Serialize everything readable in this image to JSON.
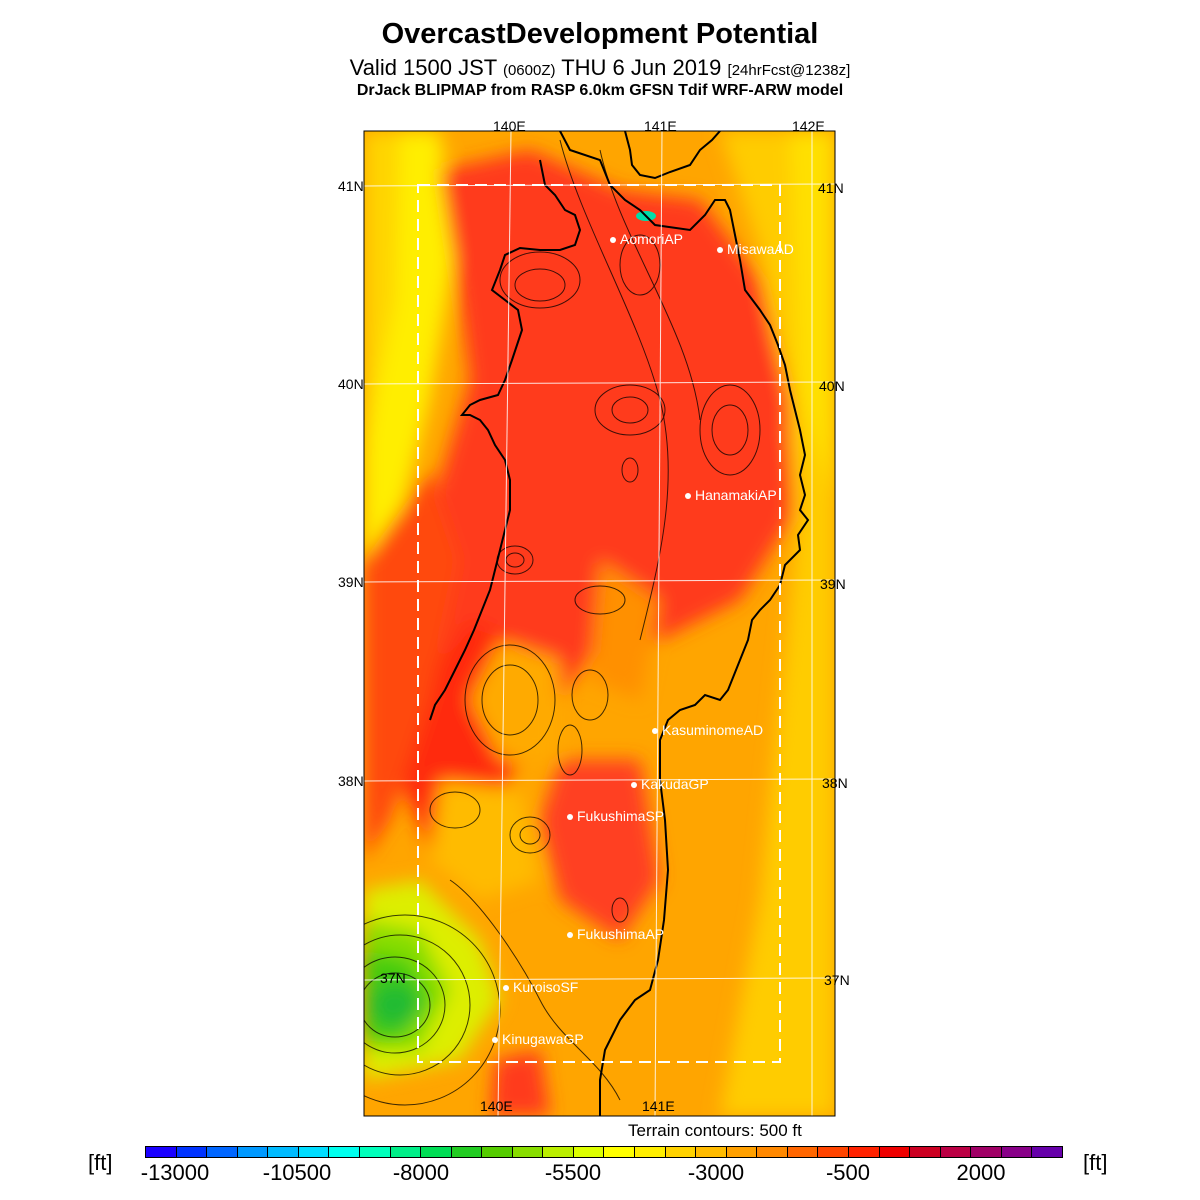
{
  "header": {
    "title": "OvercastDevelopment Potential",
    "valid_prefix": "Valid 1500 JST",
    "valid_utc": "(0600Z)",
    "valid_date": "THU 6 Jun 2019",
    "forecast": "[24hrFcst@1238z]",
    "model": "DrJack BLIPMAP from RASP 6.0km GFSN Tdif WRF-ARW model"
  },
  "map": {
    "lon_labels_top": [
      "140E",
      "141E",
      "142E"
    ],
    "lon_labels_bottom": [
      "140E",
      "141E"
    ],
    "lat_labels_left": [
      "41N",
      "40N",
      "39N",
      "38N",
      "37N"
    ],
    "lat_labels_right": [
      "41N",
      "40N",
      "39N",
      "38N",
      "37N"
    ],
    "stations": [
      {
        "name": "AomoriAP"
      },
      {
        "name": "MisawaAD"
      },
      {
        "name": "HanamakiAP"
      },
      {
        "name": "KasuminomeAD"
      },
      {
        "name": "KakudaGP"
      },
      {
        "name": "FukushimaSP"
      },
      {
        "name": "FukushimaAP"
      },
      {
        "name": "KuroisoSF"
      },
      {
        "name": "KinugawaGP"
      }
    ],
    "terrain_note": "Terrain contours: 500 ft"
  },
  "colorbar": {
    "unit": "[ft]",
    "tick_labels": [
      "-13000",
      "-10500",
      "-8000",
      "-5500",
      "-3000",
      "-500",
      "2000"
    ],
    "colors": [
      "#1a00ff",
      "#0033ff",
      "#0066ff",
      "#0099ff",
      "#00bbff",
      "#00ddff",
      "#00ffee",
      "#00ffbb",
      "#00ee88",
      "#00dd55",
      "#22cc22",
      "#55cc00",
      "#88dd00",
      "#bbee00",
      "#ddff00",
      "#ffff00",
      "#ffee00",
      "#ffd200",
      "#ffbb00",
      "#ffa000",
      "#ff8800",
      "#ff6600",
      "#ff4400",
      "#ff2200",
      "#ee0000",
      "#cc0022",
      "#bb0044",
      "#a00066",
      "#880088",
      "#6600aa"
    ]
  }
}
